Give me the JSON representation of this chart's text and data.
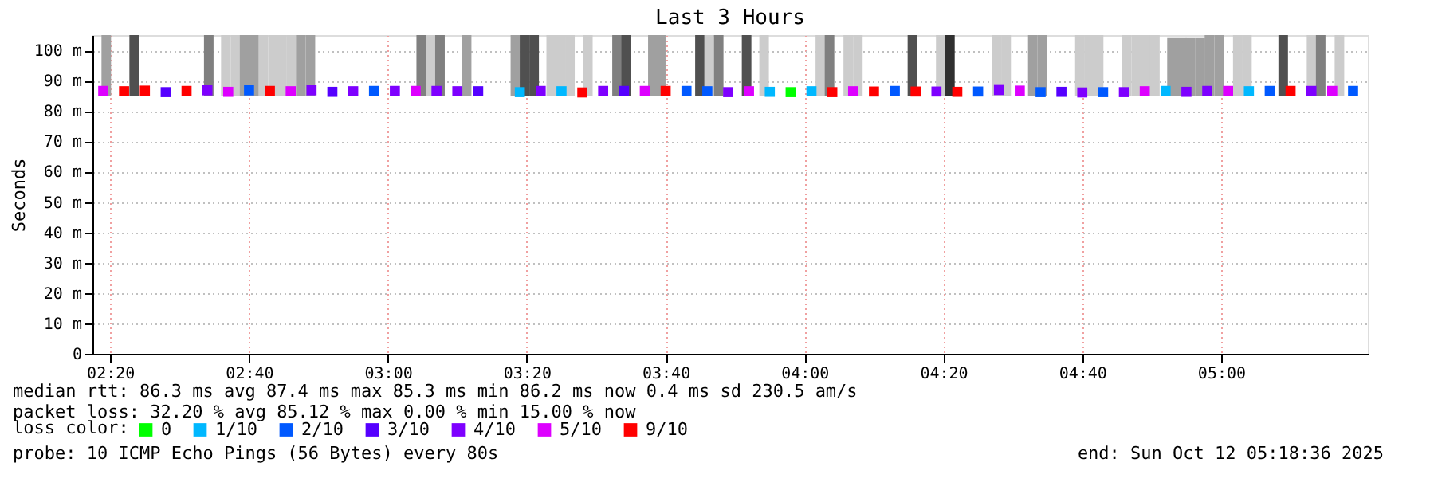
{
  "chart_data": {
    "type": "scatter",
    "title": "Last 3 Hours",
    "ylabel": "Seconds",
    "xlim": [
      2.31,
      5.333
    ],
    "ylim": [
      0,
      105
    ],
    "xticks": [
      {
        "value": 2.3333,
        "label": "02:20"
      },
      {
        "value": 2.6667,
        "label": "02:40"
      },
      {
        "value": 3.0,
        "label": "03:00"
      },
      {
        "value": 3.3333,
        "label": "03:20"
      },
      {
        "value": 3.6667,
        "label": "03:40"
      },
      {
        "value": 4.0,
        "label": "04:00"
      },
      {
        "value": 4.3333,
        "label": "04:20"
      },
      {
        "value": 4.6667,
        "label": "04:40"
      },
      {
        "value": 5.0,
        "label": "05:00"
      }
    ],
    "yticks": [
      0,
      {
        "value": 10,
        "label": "10 m"
      },
      {
        "value": 20,
        "label": "20 m"
      },
      {
        "value": 30,
        "label": "30 m"
      },
      {
        "value": 40,
        "label": "40 m"
      },
      {
        "value": 50,
        "label": "50 m"
      },
      {
        "value": 60,
        "label": "60 m"
      },
      {
        "value": 70,
        "label": "70 m"
      },
      {
        "value": 80,
        "label": "80 m"
      },
      {
        "value": 90,
        "label": "90 m"
      },
      {
        "value": 100,
        "label": "100 m"
      }
    ],
    "grid": true,
    "legend": "bottom",
    "legend_title": "loss color:",
    "marker": "square",
    "annotations": [
      "median rtt:  86.3 ms avg  87.4 ms max  85.3 ms min  86.2 ms now  0.4 ms sd  230.5   am/s",
      "packet loss: 32.20 % avg  85.12 % max  0.00 % min  15.00 % now",
      "probe:       10 ICMP Echo Pings (56 Bytes) every 80s",
      "end: Sun Oct 12 05:18:36 2025"
    ],
    "series": [
      {
        "type": "bar",
        "x": [
          2.324,
          2.391,
          2.57,
          2.611,
          2.634,
          2.656,
          2.679,
          2.701,
          2.724,
          2.746,
          2.769,
          2.791,
          2.814,
          3.08,
          3.103,
          3.125,
          3.189,
          3.306,
          3.328,
          3.351,
          3.392,
          3.414,
          3.437,
          3.48,
          3.55,
          3.572,
          3.636,
          3.655,
          3.749,
          3.771,
          3.794,
          3.861,
          3.903,
          4.038,
          4.06,
          4.105,
          4.128,
          4.259,
          4.327,
          4.349,
          4.462,
          4.484,
          4.548,
          4.571,
          4.661,
          4.683,
          4.706,
          4.773,
          4.796,
          4.819,
          4.841,
          4.882,
          4.905,
          4.927,
          4.95,
          4.972,
          4.995,
          5.04,
          5.062,
          5.149,
          5.217,
          5.239,
          5.284
        ],
        "base": [
          85,
          85,
          85,
          85,
          85,
          85,
          85,
          85,
          85,
          85,
          85,
          85,
          85,
          85,
          85,
          85,
          85,
          85,
          85,
          85,
          85,
          85,
          85,
          85,
          85,
          85,
          85,
          85,
          85,
          85,
          85,
          85,
          85,
          85,
          85,
          85,
          85,
          85,
          85,
          85,
          85,
          85,
          85,
          85,
          85,
          85,
          85,
          85,
          85,
          85,
          85,
          85,
          85,
          85,
          85,
          85,
          85,
          85,
          85,
          85,
          85,
          85,
          85
        ],
        "values": [
          20,
          20,
          20,
          20,
          20,
          20,
          20,
          20,
          20,
          20,
          20,
          20,
          20,
          20,
          20,
          20,
          20,
          20,
          20,
          20,
          20,
          20,
          20,
          20,
          20,
          20,
          20,
          20,
          20,
          20,
          20,
          20,
          20,
          20,
          20,
          20,
          20,
          20,
          20,
          20,
          20,
          20,
          20,
          20,
          20,
          20,
          20,
          20,
          20,
          20,
          20,
          19,
          19,
          19,
          19,
          20,
          20,
          20,
          20,
          20,
          20,
          20,
          20
        ],
        "colors": [
          "#a0a0a0",
          "#505050",
          "#808080",
          "#cccccc",
          "#cccccc",
          "#a0a0a0",
          "#a0a0a0",
          "#cccccc",
          "#cccccc",
          "#cccccc",
          "#cccccc",
          "#a0a0a0",
          "#a0a0a0",
          "#808080",
          "#cccccc",
          "#808080",
          "#a0a0a0",
          "#a0a0a0",
          "#505050",
          "#505050",
          "#cccccc",
          "#cccccc",
          "#cccccc",
          "#cccccc",
          "#808080",
          "#505050",
          "#a0a0a0",
          "#a0a0a0",
          "#505050",
          "#cccccc",
          "#808080",
          "#505050",
          "#cccccc",
          "#cccccc",
          "#808080",
          "#cccccc",
          "#cccccc",
          "#505050",
          "#cccccc",
          "#303030",
          "#cccccc",
          "#cccccc",
          "#a0a0a0",
          "#a0a0a0",
          "#cccccc",
          "#cccccc",
          "#cccccc",
          "#cccccc",
          "#cccccc",
          "#cccccc",
          "#cccccc",
          "#a0a0a0",
          "#a0a0a0",
          "#a0a0a0",
          "#a0a0a0",
          "#a0a0a0",
          "#a0a0a0",
          "#cccccc",
          "#cccccc",
          "#505050",
          "#cccccc",
          "#808080",
          "#cccccc"
        ]
      },
      {
        "name": "0",
        "color": "#00ff00",
        "x": [
          3.9667
        ],
        "values": [
          86.2
        ]
      },
      {
        "name": "1/10",
        "color": "#00b8ff",
        "x": [
          3.3167,
          3.4167,
          3.9167,
          4.0167,
          4.8667,
          5.0667
        ],
        "values": [
          86.2,
          86.5,
          86.3,
          86.5,
          86.6,
          86.5
        ]
      },
      {
        "name": "2/10",
        "color": "#0059ff",
        "x": [
          2.6667,
          2.9667,
          3.7167,
          3.7667,
          4.2167,
          4.4167,
          4.5667,
          4.7167,
          5.1167,
          5.3167
        ],
        "values": [
          86.8,
          86.6,
          86.6,
          86.5,
          86.6,
          86.4,
          86.2,
          86.2,
          86.6,
          86.6
        ]
      },
      {
        "name": "3/10",
        "color": "#5500ff",
        "x": [
          2.4667,
          2.8667,
          3.2167,
          3.5667,
          4.6167
        ],
        "values": [
          86.2,
          86.3,
          86.5,
          86.6,
          86.3
        ]
      },
      {
        "name": "4/10",
        "color": "#7e00ff",
        "x": [
          2.5667,
          2.8167,
          2.9167,
          3.0167,
          3.1167,
          3.1667,
          3.3667,
          3.5167,
          3.8167,
          4.3167,
          4.4667,
          4.6667,
          4.7667,
          4.9167,
          4.9667,
          5.2167
        ],
        "values": [
          86.8,
          86.8,
          86.5,
          86.6,
          86.6,
          86.5,
          86.6,
          86.6,
          86.2,
          86.4,
          86.9,
          86.1,
          86.2,
          86.3,
          86.6,
          86.6
        ]
      },
      {
        "name": "5/10",
        "color": "#dd00ff",
        "x": [
          2.3167,
          2.6167,
          2.7667,
          3.0667,
          3.6167,
          3.8667,
          4.1167,
          4.5167,
          4.8167,
          5.0167,
          5.2667
        ],
        "values": [
          86.6,
          86.3,
          86.5,
          86.6,
          86.6,
          86.5,
          86.5,
          86.7,
          86.5,
          86.6,
          86.6
        ]
      },
      {
        "name": "9/10",
        "color": "#ff0000",
        "x": [
          2.3667,
          2.4167,
          2.5167,
          2.7167,
          3.4667,
          3.6667,
          4.0667,
          4.1667,
          4.2667,
          4.3667,
          5.1667
        ],
        "values": [
          86.5,
          86.7,
          86.6,
          86.6,
          86.1,
          86.6,
          86.2,
          86.4,
          86.4,
          86.3,
          86.6
        ]
      }
    ]
  }
}
